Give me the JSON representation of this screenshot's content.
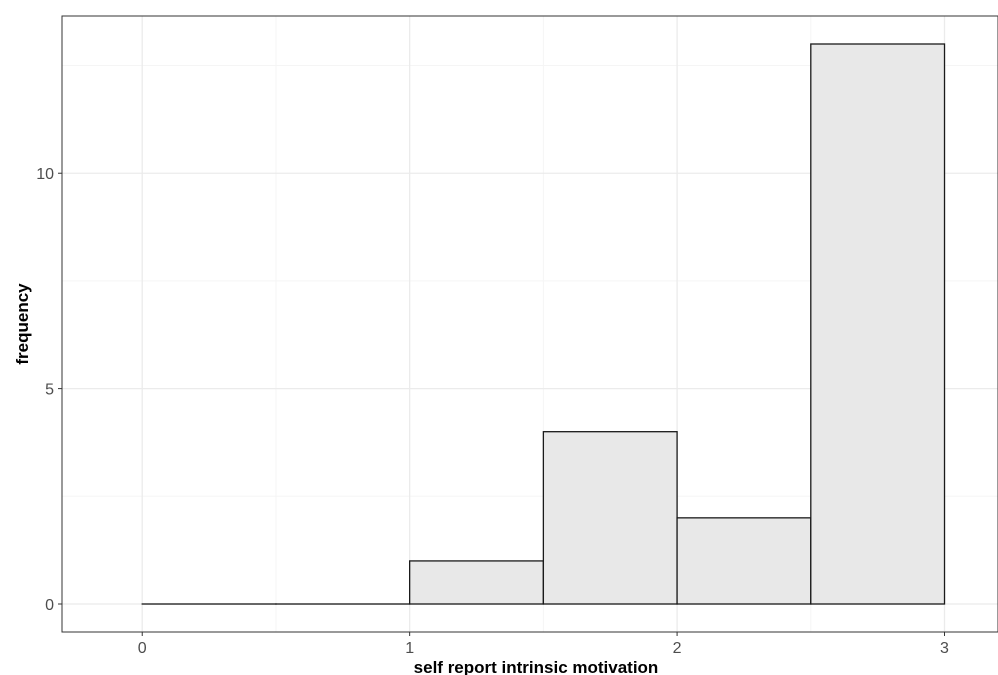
{
  "chart_data": {
    "type": "histogram",
    "title": "",
    "xlabel": "self report intrinsic motivation",
    "ylabel": "frequency",
    "xlim": [
      -0.3,
      3.2
    ],
    "ylim": [
      -0.65,
      13.65
    ],
    "x_ticks": [
      0,
      1,
      2,
      3
    ],
    "x_tick_labels": [
      "0",
      "1",
      "2",
      "3"
    ],
    "y_ticks": [
      0,
      5,
      10
    ],
    "y_tick_labels": [
      "0",
      "5",
      "10"
    ],
    "bins": [
      {
        "x0": 0.0,
        "x1": 0.5,
        "count": 0
      },
      {
        "x0": 0.5,
        "x1": 1.0,
        "count": 0
      },
      {
        "x0": 1.0,
        "x1": 1.5,
        "count": 1
      },
      {
        "x0": 1.5,
        "x1": 2.0,
        "count": 4
      },
      {
        "x0": 2.0,
        "x1": 2.5,
        "count": 2
      },
      {
        "x0": 2.5,
        "x1": 3.0,
        "count": 13
      }
    ],
    "grid": true,
    "colors": {
      "bar_fill": "#e8e8e8",
      "bar_stroke": "#1a1a1a",
      "grid_major": "#ebebeb",
      "grid_minor": "#f5f5f5",
      "panel_border": "#333333"
    }
  }
}
